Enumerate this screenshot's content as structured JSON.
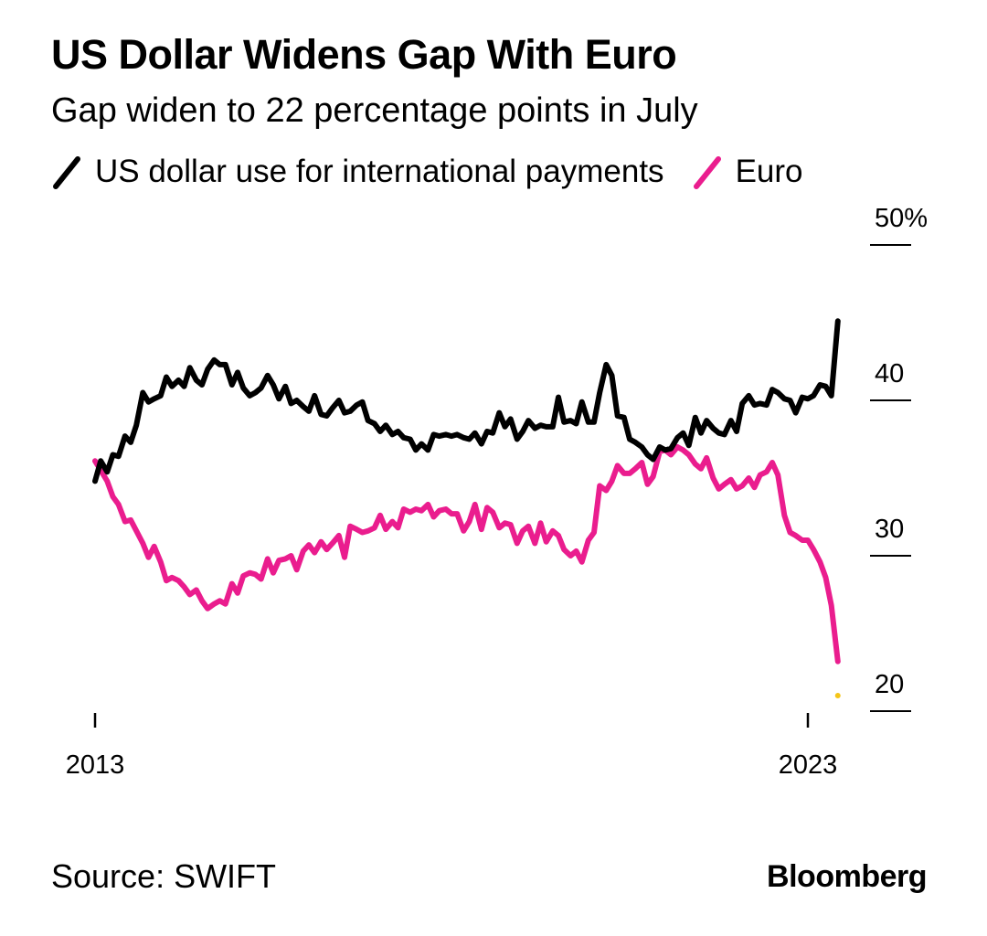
{
  "chart_data": {
    "type": "line",
    "title": "US Dollar Widens Gap With Euro",
    "subtitle": "Gap widen to 22 percentage points in July",
    "xlabel": "",
    "ylabel": "",
    "x_range": [
      2013.0,
      2023.5
    ],
    "x_ticks": [
      {
        "value": 2013.0,
        "label": "2013"
      },
      {
        "value": 2023.0,
        "label": "2023"
      }
    ],
    "ylim": [
      20,
      50
    ],
    "y_ticks": [
      {
        "value": 50,
        "label": "50%"
      },
      {
        "value": 40,
        "label": "40"
      },
      {
        "value": 30,
        "label": "30"
      },
      {
        "value": 20,
        "label": "20"
      }
    ],
    "legend_position": "top-left",
    "series": [
      {
        "name": "US dollar use for international payments",
        "color": "#000000",
        "points": [
          [
            2013.0,
            34.8
          ],
          [
            2013.08,
            36.1
          ],
          [
            2013.17,
            35.4
          ],
          [
            2013.25,
            36.5
          ],
          [
            2013.33,
            36.4
          ],
          [
            2013.42,
            37.7
          ],
          [
            2013.5,
            37.3
          ],
          [
            2013.58,
            38.4
          ],
          [
            2013.67,
            40.5
          ],
          [
            2013.75,
            39.9
          ],
          [
            2013.83,
            40.1
          ],
          [
            2013.92,
            40.3
          ],
          [
            2014.0,
            41.5
          ],
          [
            2014.08,
            40.9
          ],
          [
            2014.17,
            41.3
          ],
          [
            2014.25,
            40.9
          ],
          [
            2014.33,
            42.1
          ],
          [
            2014.42,
            41.3
          ],
          [
            2014.5,
            41.0
          ],
          [
            2014.58,
            42.0
          ],
          [
            2014.67,
            42.6
          ],
          [
            2014.75,
            42.3
          ],
          [
            2014.83,
            42.3
          ],
          [
            2014.92,
            41.0
          ],
          [
            2015.0,
            41.8
          ],
          [
            2015.08,
            40.8
          ],
          [
            2015.17,
            40.3
          ],
          [
            2015.25,
            40.5
          ],
          [
            2015.33,
            40.8
          ],
          [
            2015.42,
            41.6
          ],
          [
            2015.5,
            41.0
          ],
          [
            2015.58,
            40.1
          ],
          [
            2015.67,
            40.9
          ],
          [
            2015.75,
            39.8
          ],
          [
            2015.83,
            40.0
          ],
          [
            2015.92,
            39.6
          ],
          [
            2016.0,
            39.3
          ],
          [
            2016.08,
            40.3
          ],
          [
            2016.17,
            39.1
          ],
          [
            2016.25,
            39.0
          ],
          [
            2016.33,
            39.5
          ],
          [
            2016.42,
            40.0
          ],
          [
            2016.5,
            39.2
          ],
          [
            2016.58,
            39.3
          ],
          [
            2016.67,
            39.7
          ],
          [
            2016.75,
            39.9
          ],
          [
            2016.83,
            38.7
          ],
          [
            2016.92,
            38.5
          ],
          [
            2017.0,
            38.0
          ],
          [
            2017.08,
            38.4
          ],
          [
            2017.17,
            37.8
          ],
          [
            2017.25,
            38.0
          ],
          [
            2017.33,
            37.6
          ],
          [
            2017.42,
            37.5
          ],
          [
            2017.5,
            36.8
          ],
          [
            2017.58,
            37.2
          ],
          [
            2017.67,
            36.8
          ],
          [
            2017.75,
            37.8
          ],
          [
            2017.83,
            37.7
          ],
          [
            2017.92,
            37.8
          ],
          [
            2018.0,
            37.7
          ],
          [
            2018.08,
            37.8
          ],
          [
            2018.17,
            37.6
          ],
          [
            2018.25,
            37.5
          ],
          [
            2018.33,
            37.9
          ],
          [
            2018.42,
            37.2
          ],
          [
            2018.5,
            38.0
          ],
          [
            2018.58,
            37.9
          ],
          [
            2018.67,
            39.2
          ],
          [
            2018.75,
            38.3
          ],
          [
            2018.83,
            38.8
          ],
          [
            2018.92,
            37.5
          ],
          [
            2019.0,
            38.0
          ],
          [
            2019.08,
            38.7
          ],
          [
            2019.17,
            38.2
          ],
          [
            2019.25,
            38.4
          ],
          [
            2019.33,
            38.3
          ],
          [
            2019.42,
            38.3
          ],
          [
            2019.5,
            40.2
          ],
          [
            2019.58,
            38.6
          ],
          [
            2019.67,
            38.7
          ],
          [
            2019.75,
            38.5
          ],
          [
            2019.83,
            39.9
          ],
          [
            2019.92,
            38.6
          ],
          [
            2020.0,
            38.6
          ],
          [
            2020.08,
            40.5
          ],
          [
            2020.17,
            42.3
          ],
          [
            2020.25,
            41.6
          ],
          [
            2020.33,
            39.0
          ],
          [
            2020.42,
            38.9
          ],
          [
            2020.5,
            37.5
          ],
          [
            2020.58,
            37.3
          ],
          [
            2020.67,
            37.0
          ],
          [
            2020.75,
            36.5
          ],
          [
            2020.83,
            36.2
          ],
          [
            2020.92,
            37.0
          ],
          [
            2021.0,
            36.8
          ],
          [
            2021.08,
            36.9
          ],
          [
            2021.17,
            37.6
          ],
          [
            2021.25,
            37.9
          ],
          [
            2021.33,
            37.1
          ],
          [
            2021.42,
            38.9
          ],
          [
            2021.5,
            37.9
          ],
          [
            2021.58,
            38.7
          ],
          [
            2021.67,
            38.2
          ],
          [
            2021.75,
            37.9
          ],
          [
            2021.83,
            37.8
          ],
          [
            2021.92,
            38.7
          ],
          [
            2022.0,
            38.0
          ],
          [
            2022.08,
            39.8
          ],
          [
            2022.17,
            40.3
          ],
          [
            2022.25,
            39.7
          ],
          [
            2022.33,
            39.8
          ],
          [
            2022.42,
            39.7
          ],
          [
            2022.5,
            40.7
          ],
          [
            2022.58,
            40.5
          ],
          [
            2022.67,
            40.1
          ],
          [
            2022.75,
            40.0
          ],
          [
            2022.83,
            39.2
          ],
          [
            2022.92,
            40.2
          ],
          [
            2023.0,
            40.1
          ],
          [
            2023.08,
            40.3
          ],
          [
            2023.17,
            41.0
          ],
          [
            2023.25,
            40.9
          ],
          [
            2023.33,
            40.3
          ],
          [
            2023.42,
            45.1
          ]
        ]
      },
      {
        "name": "Euro",
        "color": "#ea1d8e",
        "points": [
          [
            2013.0,
            36.1
          ],
          [
            2013.08,
            35.5
          ],
          [
            2013.17,
            34.8
          ],
          [
            2013.25,
            33.8
          ],
          [
            2013.33,
            33.3
          ],
          [
            2013.42,
            32.2
          ],
          [
            2013.5,
            32.3
          ],
          [
            2013.58,
            31.6
          ],
          [
            2013.67,
            30.8
          ],
          [
            2013.75,
            29.9
          ],
          [
            2013.83,
            30.6
          ],
          [
            2013.92,
            29.6
          ],
          [
            2014.0,
            28.4
          ],
          [
            2014.08,
            28.6
          ],
          [
            2014.17,
            28.4
          ],
          [
            2014.25,
            28.0
          ],
          [
            2014.33,
            27.5
          ],
          [
            2014.42,
            27.8
          ],
          [
            2014.5,
            27.1
          ],
          [
            2014.58,
            26.6
          ],
          [
            2014.67,
            26.9
          ],
          [
            2014.75,
            27.1
          ],
          [
            2014.83,
            26.9
          ],
          [
            2014.92,
            28.2
          ],
          [
            2015.0,
            27.6
          ],
          [
            2015.08,
            28.7
          ],
          [
            2015.17,
            28.9
          ],
          [
            2015.25,
            28.8
          ],
          [
            2015.33,
            28.5
          ],
          [
            2015.42,
            29.8
          ],
          [
            2015.5,
            28.9
          ],
          [
            2015.58,
            29.7
          ],
          [
            2015.67,
            29.8
          ],
          [
            2015.75,
            30.0
          ],
          [
            2015.83,
            29.1
          ],
          [
            2015.92,
            30.3
          ],
          [
            2016.0,
            30.7
          ],
          [
            2016.08,
            30.2
          ],
          [
            2016.17,
            30.9
          ],
          [
            2016.25,
            30.4
          ],
          [
            2016.33,
            30.8
          ],
          [
            2016.42,
            31.3
          ],
          [
            2016.5,
            29.9
          ],
          [
            2016.58,
            31.9
          ],
          [
            2016.67,
            31.7
          ],
          [
            2016.75,
            31.5
          ],
          [
            2016.83,
            31.6
          ],
          [
            2016.92,
            31.8
          ],
          [
            2017.0,
            32.6
          ],
          [
            2017.08,
            31.7
          ],
          [
            2017.17,
            32.2
          ],
          [
            2017.25,
            31.8
          ],
          [
            2017.33,
            33.0
          ],
          [
            2017.42,
            32.8
          ],
          [
            2017.5,
            33.0
          ],
          [
            2017.58,
            32.9
          ],
          [
            2017.67,
            33.3
          ],
          [
            2017.75,
            32.5
          ],
          [
            2017.83,
            32.9
          ],
          [
            2017.92,
            33.0
          ],
          [
            2018.0,
            32.7
          ],
          [
            2018.08,
            32.7
          ],
          [
            2018.17,
            31.6
          ],
          [
            2018.25,
            32.2
          ],
          [
            2018.33,
            33.3
          ],
          [
            2018.42,
            31.7
          ],
          [
            2018.5,
            33.1
          ],
          [
            2018.58,
            32.8
          ],
          [
            2018.67,
            31.8
          ],
          [
            2018.75,
            32.1
          ],
          [
            2018.83,
            32.0
          ],
          [
            2018.92,
            30.8
          ],
          [
            2019.0,
            31.6
          ],
          [
            2019.08,
            31.9
          ],
          [
            2019.17,
            30.8
          ],
          [
            2019.25,
            32.1
          ],
          [
            2019.33,
            30.9
          ],
          [
            2019.42,
            31.6
          ],
          [
            2019.5,
            31.3
          ],
          [
            2019.58,
            30.4
          ],
          [
            2019.67,
            30.0
          ],
          [
            2019.75,
            30.3
          ],
          [
            2019.83,
            29.6
          ],
          [
            2019.92,
            31.0
          ],
          [
            2020.0,
            31.5
          ],
          [
            2020.08,
            34.5
          ],
          [
            2020.17,
            34.2
          ],
          [
            2020.25,
            34.8
          ],
          [
            2020.33,
            35.8
          ],
          [
            2020.42,
            35.3
          ],
          [
            2020.5,
            35.3
          ],
          [
            2020.58,
            35.6
          ],
          [
            2020.67,
            36.0
          ],
          [
            2020.75,
            34.6
          ],
          [
            2020.83,
            35.1
          ],
          [
            2020.92,
            36.7
          ],
          [
            2021.0,
            36.8
          ],
          [
            2021.08,
            36.5
          ],
          [
            2021.17,
            37.0
          ],
          [
            2021.25,
            36.8
          ],
          [
            2021.33,
            36.5
          ],
          [
            2021.42,
            35.9
          ],
          [
            2021.5,
            35.6
          ],
          [
            2021.58,
            36.3
          ],
          [
            2021.67,
            35.0
          ],
          [
            2021.75,
            34.3
          ],
          [
            2021.83,
            34.6
          ],
          [
            2021.92,
            34.9
          ],
          [
            2022.0,
            34.3
          ],
          [
            2022.08,
            34.5
          ],
          [
            2022.17,
            35.0
          ],
          [
            2022.25,
            34.4
          ],
          [
            2022.33,
            35.2
          ],
          [
            2022.42,
            35.4
          ],
          [
            2022.5,
            36.0
          ],
          [
            2022.58,
            35.2
          ],
          [
            2022.67,
            32.6
          ],
          [
            2022.75,
            31.5
          ],
          [
            2022.83,
            31.3
          ],
          [
            2022.92,
            31.0
          ],
          [
            2023.0,
            31.0
          ],
          [
            2023.08,
            30.4
          ],
          [
            2023.17,
            29.6
          ],
          [
            2023.25,
            28.6
          ],
          [
            2023.33,
            26.8
          ],
          [
            2023.42,
            23.2
          ]
        ]
      }
    ],
    "annotations": [
      {
        "type": "point",
        "x": 2023.42,
        "y": 21.0,
        "color": "#f5c518"
      }
    ]
  },
  "source": "Source: SWIFT",
  "brand": "Bloomberg"
}
